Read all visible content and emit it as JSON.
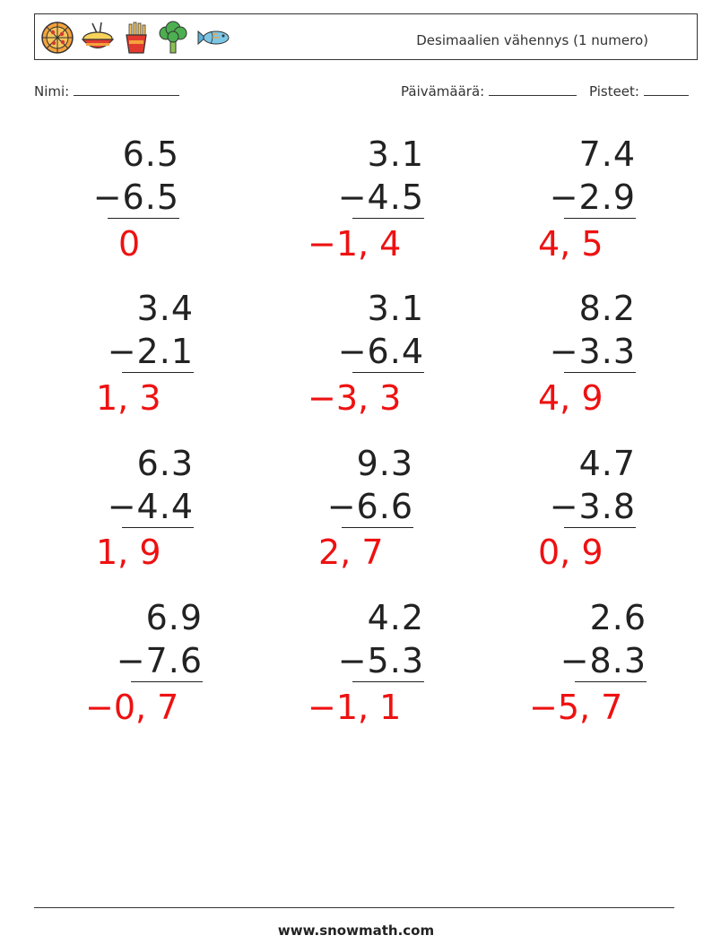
{
  "header": {
    "title": "Desimaalien vähennys (1 numero)",
    "icons": [
      "pizza-icon",
      "rice-bowl-icon",
      "fries-icon",
      "broccoli-icon",
      "fish-icon"
    ]
  },
  "meta": {
    "name_label": "Nimi:",
    "date_label": "Päivämäärä:",
    "score_label": "Pisteet:"
  },
  "problems": [
    {
      "top": "6.5",
      "bottom": "−6.5",
      "answer": "0"
    },
    {
      "top": "3.1",
      "bottom": "−4.5",
      "answer": "−1, 4"
    },
    {
      "top": "7.4",
      "bottom": "−2.9",
      "answer": "4, 5"
    },
    {
      "top": "3.4",
      "bottom": "−2.1",
      "answer": "1, 3"
    },
    {
      "top": "3.1",
      "bottom": "−6.4",
      "answer": "−3, 3"
    },
    {
      "top": "8.2",
      "bottom": "−3.3",
      "answer": "4, 9"
    },
    {
      "top": "6.3",
      "bottom": "−4.4",
      "answer": "1, 9"
    },
    {
      "top": "9.3",
      "bottom": "−6.6",
      "answer": "2, 7"
    },
    {
      "top": "4.7",
      "bottom": "−3.8",
      "answer": "0, 9"
    },
    {
      "top": "6.9",
      "bottom": "−7.6",
      "answer": "−0, 7"
    },
    {
      "top": "4.2",
      "bottom": "−5.3",
      "answer": "−1, 1"
    },
    {
      "top": "2.6",
      "bottom": "−8.3",
      "answer": "−5, 7"
    }
  ],
  "footer": {
    "site": "www.snowmath.com"
  },
  "colors": {
    "answer": "#ee1111",
    "text": "#222222"
  }
}
